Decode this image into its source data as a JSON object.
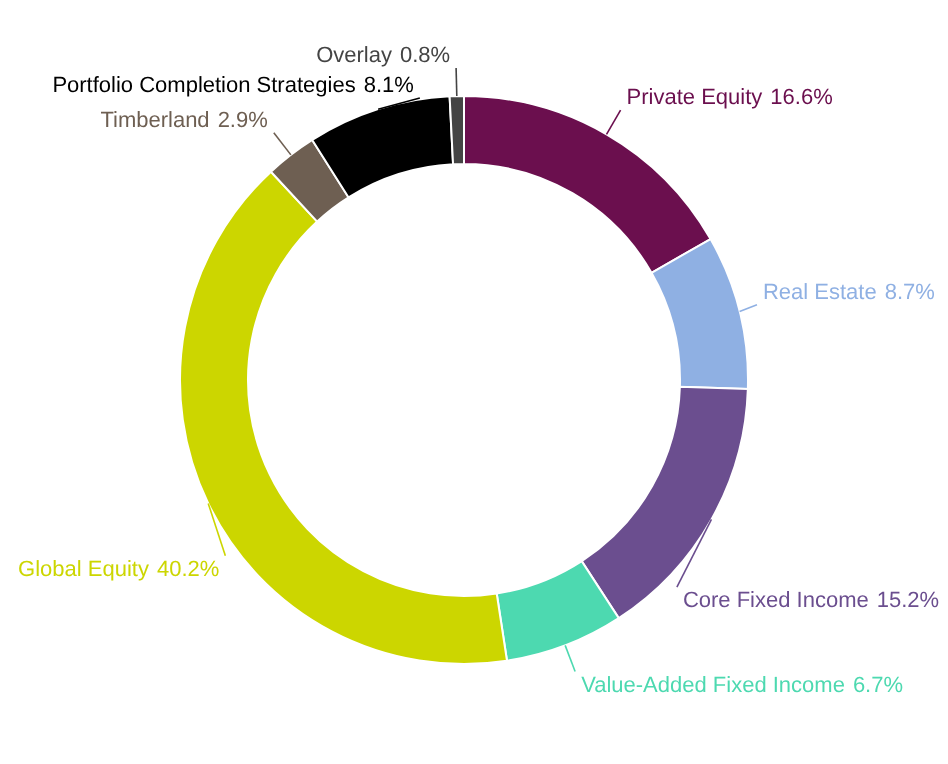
{
  "chart_data": {
    "type": "donut",
    "categories": [
      "Private Equity",
      "Real Estate",
      "Core Fixed Income",
      "Value-Added Fixed Income",
      "Global Equity",
      "Timberland",
      "Portfolio Completion Strategies",
      "Overlay"
    ],
    "values": [
      16.6,
      8.7,
      15.2,
      6.7,
      40.2,
      2.9,
      8.1,
      0.8
    ],
    "colors": [
      "#6b0f4e",
      "#8fb0e3",
      "#6b4e8f",
      "#4dd9b0",
      "#ccd600",
      "#6e5f52",
      "#000000",
      "#444444"
    ],
    "value_labels": [
      "16.6%",
      "8.7%",
      "15.2%",
      "6.7%",
      "40.2%",
      "2.9%",
      "8.1%",
      "0.8%"
    ]
  }
}
